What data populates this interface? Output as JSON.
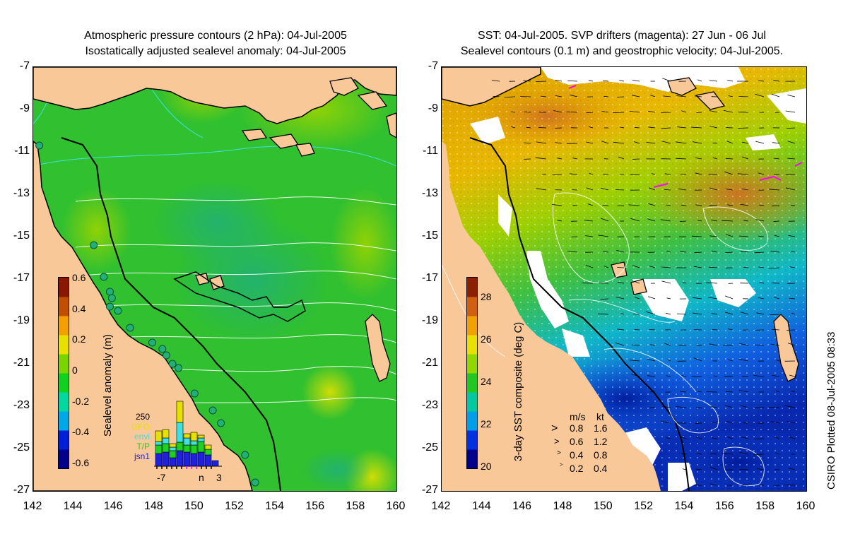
{
  "left_panel": {
    "title_line1": "Atmospheric pressure contours (2 hPa): 04-Jul-2005",
    "title_line2": "Isostatically adjusted sealevel anomaly: 04-Jul-2005",
    "colorbar": {
      "title": "Sealevel anomaly (m)",
      "ticks": [
        "0.6",
        "0.4",
        "0.2",
        "0",
        "-0.2",
        "-0.4",
        "-0.6"
      ],
      "colors": [
        "#00008a",
        "#0020d8",
        "#00a8e8",
        "#00d8a0",
        "#10d020",
        "#7ad400",
        "#e8e000",
        "#f0a000",
        "#c05000",
        "#8a1800"
      ]
    },
    "histogram": {
      "legend": [
        "250",
        "GFO",
        "envi",
        "T/P",
        "jsn1"
      ],
      "legend_colors": [
        "#000000",
        "#e8e000",
        "#40e0e0",
        "#20d020",
        "#2020e0"
      ],
      "x_ticks": [
        "-7",
        "n",
        "3"
      ],
      "bars": [
        {
          "jsn1": 0.18,
          "tp": 0.12,
          "envi": 0.05,
          "gfo": 0.15
        },
        {
          "jsn1": 0.2,
          "tp": 0.12,
          "envi": 0.08,
          "gfo": 0.12
        },
        {
          "jsn1": 0.12,
          "tp": 0.1,
          "envi": 0.05,
          "gfo": 0.05
        },
        {
          "jsn1": 0.22,
          "tp": 0.12,
          "envi": 0.28,
          "gfo": 0.3
        },
        {
          "jsn1": 0.2,
          "tp": 0.1,
          "envi": 0.1,
          "gfo": 0.06
        },
        {
          "jsn1": 0.18,
          "tp": 0.12,
          "envi": 0.06,
          "gfo": 0.12
        },
        {
          "jsn1": 0.2,
          "tp": 0.15,
          "envi": 0.05,
          "gfo": 0.04
        },
        {
          "jsn1": 0.16,
          "tp": 0.08,
          "envi": 0.0,
          "gfo": 0.06
        },
        {
          "jsn1": 0.08,
          "tp": 0.0,
          "envi": 0.0,
          "gfo": 0.0
        }
      ]
    }
  },
  "right_panel": {
    "title_line1": "SST: 04-Jul-2005. SVP drifters (magenta): 27 Jun - 06 Jul",
    "title_line2": "Sealevel contours (0.1 m) and geostrophic velocity: 04-Jul-2005.",
    "colorbar": {
      "title": "3-day SST composite (deg C)",
      "ticks": [
        "28",
        "26",
        "24",
        "22",
        "20"
      ],
      "colors": [
        "#00008a",
        "#0030e0",
        "#00a0e8",
        "#00c8a0",
        "#20c820",
        "#90d800",
        "#e8e000",
        "#f0a000",
        "#d06010",
        "#8a2000"
      ]
    },
    "velocity_legend": {
      "header_ms": "m/s",
      "header_kt": "kt",
      "rows": [
        {
          "ms": "0.8",
          "kt": "1.6"
        },
        {
          "ms": "0.6",
          "kt": "1.2"
        },
        {
          "ms": "0.4",
          "kt": "0.8"
        },
        {
          "ms": "0.2",
          "kt": "0.4"
        }
      ]
    }
  },
  "axes": {
    "lat_ticks": [
      "-7",
      "-9",
      "-11",
      "-13",
      "-15",
      "-17",
      "-19",
      "-21",
      "-23",
      "-25",
      "-27"
    ],
    "lon_ticks": [
      "142",
      "144",
      "146",
      "148",
      "150",
      "152",
      "154",
      "156",
      "158",
      "160"
    ]
  },
  "footer_note": "CSIRO Plotted 08-Jul-2005 08:33",
  "colors": {
    "land": "#f8c898",
    "ocean_base_left": "#30c030",
    "ocean_base_right": "#a0d000",
    "coast": "#000000"
  },
  "tide_gauges": [
    {
      "lon": 142.3,
      "lat": -10.7
    },
    {
      "lon": 145.0,
      "lat": -15.4
    },
    {
      "lon": 145.5,
      "lat": -16.9
    },
    {
      "lon": 145.8,
      "lat": -17.6
    },
    {
      "lon": 145.9,
      "lat": -17.9
    },
    {
      "lon": 145.8,
      "lat": -18.3
    },
    {
      "lon": 146.2,
      "lat": -18.5
    },
    {
      "lon": 146.8,
      "lat": -19.3
    },
    {
      "lon": 147.9,
      "lat": -20.0
    },
    {
      "lon": 148.4,
      "lat": -20.3
    },
    {
      "lon": 148.6,
      "lat": -20.6
    },
    {
      "lon": 148.9,
      "lat": -21.0
    },
    {
      "lon": 149.2,
      "lat": -21.2
    },
    {
      "lon": 150.0,
      "lat": -22.4
    },
    {
      "lon": 150.9,
      "lat": -23.2
    },
    {
      "lon": 151.3,
      "lat": -23.8
    },
    {
      "lon": 152.5,
      "lat": -25.3
    },
    {
      "lon": 153.0,
      "lat": -26.6
    }
  ]
}
